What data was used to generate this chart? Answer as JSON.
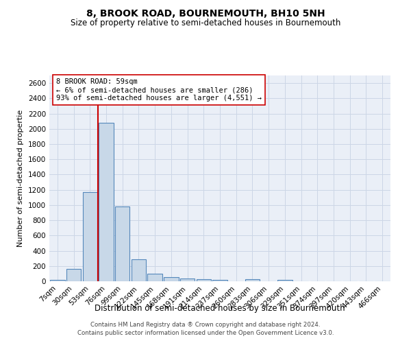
{
  "title": "8, BROOK ROAD, BOURNEMOUTH, BH10 5NH",
  "subtitle": "Size of property relative to semi-detached houses in Bournemouth",
  "xlabel": "Distribution of semi-detached houses by size in Bournemouth",
  "ylabel": "Number of semi-detached propertie",
  "footer1": "Contains HM Land Registry data ® Crown copyright and database right 2024.",
  "footer2": "Contains public sector information licensed under the Open Government Licence v3.0.",
  "bin_labels": [
    "7sqm",
    "30sqm",
    "53sqm",
    "76sqm",
    "99sqm",
    "122sqm",
    "145sqm",
    "168sqm",
    "191sqm",
    "214sqm",
    "237sqm",
    "260sqm",
    "283sqm",
    "306sqm",
    "329sqm",
    "351sqm",
    "374sqm",
    "397sqm",
    "420sqm",
    "443sqm",
    "466sqm"
  ],
  "bar_values": [
    20,
    160,
    1170,
    2080,
    980,
    285,
    100,
    50,
    38,
    25,
    18,
    0,
    28,
    0,
    18,
    0,
    0,
    0,
    0,
    0,
    0
  ],
  "bar_color": "#c8d8e8",
  "bar_edge_color": "#5588bb",
  "vline_color": "#cc0000",
  "vline_x": 2.5,
  "annotation_text": "8 BROOK ROAD: 59sqm\n← 6% of semi-detached houses are smaller (286)\n93% of semi-detached houses are larger (4,551) →",
  "annotation_box_facecolor": "#ffffff",
  "annotation_box_edgecolor": "#cc0000",
  "ylim": [
    0,
    2700
  ],
  "yticks": [
    0,
    200,
    400,
    600,
    800,
    1000,
    1200,
    1400,
    1600,
    1800,
    2000,
    2200,
    2400,
    2600
  ],
  "grid_color": "#ccd6e6",
  "bg_color": "#eaeff7",
  "title_fontsize": 10,
  "subtitle_fontsize": 8.5,
  "xlabel_fontsize": 8.5,
  "ylabel_fontsize": 8,
  "tick_fontsize": 7.5,
  "annotation_fontsize": 7.5,
  "footer_fontsize": 6.2
}
